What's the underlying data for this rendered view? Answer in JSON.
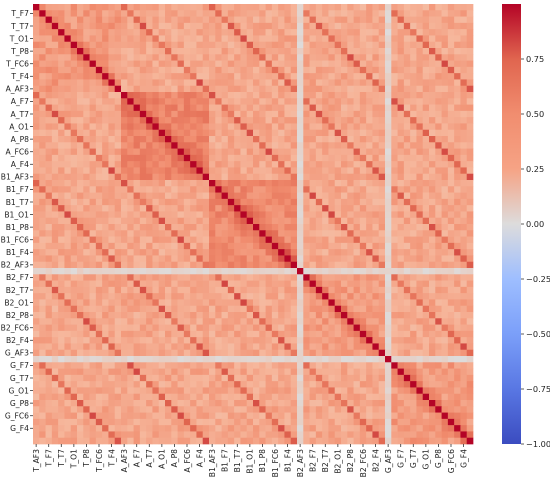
{
  "chart_data": {
    "type": "heatmap",
    "title": "",
    "xlabel": "",
    "ylabel": "",
    "row_labels": [
      "T_F7",
      "T_T7",
      "T_O1",
      "T_P8",
      "T_FC6",
      "T_F4",
      "A_AF3",
      "A_F7",
      "A_T7",
      "A_O1",
      "A_P8",
      "A_FC6",
      "A_F4",
      "B1_AF3",
      "B1_F7",
      "B1_T7",
      "B1_O1",
      "B1_P8",
      "B1_FC6",
      "B1_F4",
      "B2_AF3",
      "B2_F7",
      "B2_T7",
      "B2_O1",
      "B2_P8",
      "B2_FC6",
      "B2_F4",
      "G_AF3",
      "G_F7",
      "G_T7",
      "G_O1",
      "G_P8",
      "G_FC6",
      "G_F4"
    ],
    "col_labels": [
      "T_AF3",
      "T_F7",
      "T_T7",
      "T_O1",
      "T_P8",
      "T_FC6",
      "T_F4",
      "A_AF3",
      "A_F7",
      "A_T7",
      "A_O1",
      "A_P8",
      "A_FC6",
      "A_F4",
      "B1_AF3",
      "B1_F7",
      "B1_T7",
      "B1_O1",
      "B1_P8",
      "B1_FC6",
      "B1_F4",
      "B2_AF3",
      "B2_F7",
      "B2_T7",
      "B2_O1",
      "B2_P8",
      "B2_FC6",
      "B2_F4",
      "G_AF3",
      "G_F7",
      "G_T7",
      "G_O1",
      "G_P8",
      "G_FC6",
      "G_F4"
    ],
    "groups": [
      "T",
      "A",
      "B1",
      "B2",
      "G"
    ],
    "channels_per_group": 14,
    "colorbar": {
      "colormap": "coolwarm",
      "min": -1.0,
      "max": 1.0,
      "ticks": [
        0.75,
        0.5,
        0.25,
        0.0,
        -0.25,
        -0.5,
        -0.75,
        -1.0
      ],
      "tick_labels": [
        "0.75",
        "0.50",
        "0.25",
        "0.00",
        "−0.25",
        "−0.50",
        "−0.75",
        "−1.00"
      ]
    },
    "value_model": {
      "diagonal": 1.0,
      "same_group_base": 0.42,
      "same_group_block_A": 0.55,
      "same_group_block_B1": 0.52,
      "cross_group_base": 0.34,
      "same_channel_cross_group": 0.72,
      "near_zero_channels": [
        "B2_AF3",
        "G_AF3"
      ],
      "near_zero_value": 0.05
    },
    "legend_position": "right",
    "grid": false
  }
}
